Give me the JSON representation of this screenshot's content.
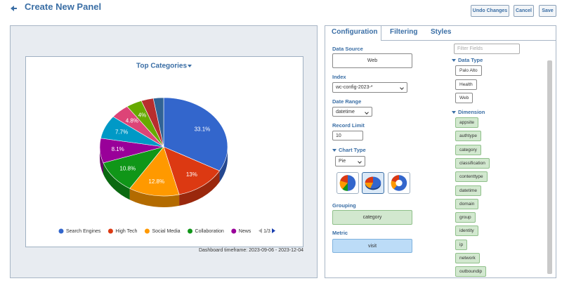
{
  "header": {
    "title": "Create New Panel"
  },
  "buttons": [
    "Undo Changes",
    "Cancel",
    "Save"
  ],
  "chart_data": {
    "type": "pie",
    "title": "Top Categories",
    "categories": [
      "Search Engines",
      "High Tech",
      "Social Media",
      "Collaboration",
      "News",
      null,
      null,
      null,
      null,
      null
    ],
    "values": [
      33.1,
      13,
      12.8,
      10.8,
      8.1,
      7.7,
      4.8,
      4,
      3.1,
      2.6
    ],
    "value_labels": [
      "33.1%",
      "13%",
      "12.8%",
      "10.8%",
      "8.1%",
      "7.7%",
      "4.8%",
      "4%",
      null,
      null
    ],
    "colors": [
      "#3366cc",
      "#dc3912",
      "#ff9900",
      "#109618",
      "#990099",
      "#0099c6",
      "#dd4477",
      "#66aa00",
      "#b82e2e",
      "#316395"
    ],
    "legend_page": "1/3"
  },
  "timeframe": "Dashboard timeframe: 2023-09-06 - 2023-12-04",
  "tabs": [
    "Configuration",
    "Filtering",
    "Styles"
  ],
  "config": {
    "data_source": {
      "label": "Data Source",
      "value": "Web"
    },
    "index": {
      "label": "Index",
      "value": "wc-config-2023-*"
    },
    "date_range": {
      "label": "Date Range",
      "value": "datetime"
    },
    "record_limit": {
      "label": "Record Limit",
      "value": "10"
    },
    "chart_type": {
      "label": "Chart Type",
      "value": "Pie"
    },
    "grouping": {
      "label": "Grouping",
      "value": "category"
    },
    "metric": {
      "label": "Metric",
      "value": "visit"
    }
  },
  "fields": {
    "filter_placeholder": "Filter Fields",
    "data_type": {
      "label": "Data Type",
      "items": [
        "Palo Alto",
        "Health",
        "Web"
      ]
    },
    "dimension": {
      "label": "Dimension",
      "items": [
        "appsite",
        "authtype",
        "category",
        "classification",
        "contenttype",
        "datetime",
        "domain",
        "group",
        "identity",
        "ip",
        "network",
        "outboundip"
      ]
    }
  }
}
